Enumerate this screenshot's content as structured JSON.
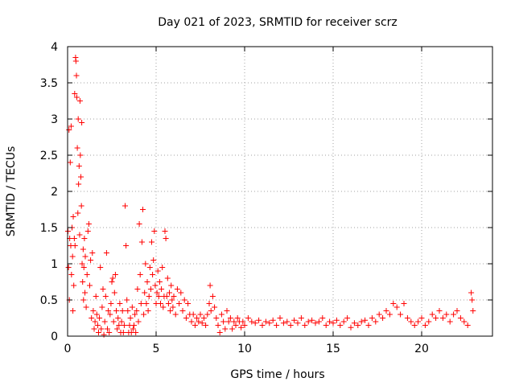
{
  "chart_data": {
    "type": "scatter",
    "title": "Day 021 of 2023, SRMTID for receiver scrz",
    "xlabel": "GPS time / hours",
    "ylabel": "SRMTID / TECUs",
    "xlim": [
      0,
      24
    ],
    "ylim": [
      0,
      4
    ],
    "xticks": [
      0,
      5,
      10,
      15,
      20
    ],
    "xtick_labels": [
      "0",
      "5",
      "10",
      "15",
      "20"
    ],
    "yticks": [
      0,
      0.5,
      1,
      1.5,
      2,
      2.5,
      3,
      3.5,
      4
    ],
    "ytick_labels": [
      "0",
      "0.5",
      "1",
      "1.5",
      "2",
      "2.5",
      "3",
      "3.5",
      "4"
    ],
    "grid": true,
    "marker": "+",
    "series": [
      {
        "name": "SRMTID",
        "color": "#ff0000",
        "points": [
          [
            0.02,
            1.45
          ],
          [
            0.05,
            0.95
          ],
          [
            0.08,
            2.85
          ],
          [
            0.1,
            0.5
          ],
          [
            0.12,
            1.35
          ],
          [
            0.15,
            2.4
          ],
          [
            0.18,
            1.25
          ],
          [
            0.2,
            2.9
          ],
          [
            0.22,
            0.85
          ],
          [
            0.25,
            1.5
          ],
          [
            0.28,
            1.1
          ],
          [
            0.3,
            0.35
          ],
          [
            0.32,
            1.65
          ],
          [
            0.35,
            0.7
          ],
          [
            0.38,
            1.35
          ],
          [
            0.4,
            3.35
          ],
          [
            0.42,
            1.25
          ],
          [
            0.45,
            3.85
          ],
          [
            0.47,
            3.8
          ],
          [
            0.5,
            3.6
          ],
          [
            0.52,
            3.3
          ],
          [
            0.55,
            2.6
          ],
          [
            0.58,
            1.7
          ],
          [
            0.6,
            3.0
          ],
          [
            0.62,
            2.1
          ],
          [
            0.65,
            2.35
          ],
          [
            0.68,
            1.4
          ],
          [
            0.7,
            3.25
          ],
          [
            0.72,
            2.5
          ],
          [
            0.75,
            2.2
          ],
          [
            0.78,
            1.8
          ],
          [
            0.8,
            2.95
          ],
          [
            0.82,
            1.0
          ],
          [
            0.85,
            0.75
          ],
          [
            0.88,
            1.2
          ],
          [
            0.9,
            0.5
          ],
          [
            0.92,
            0.95
          ],
          [
            0.95,
            1.35
          ],
          [
            0.98,
            0.6
          ],
          [
            1.0,
            1.1
          ],
          [
            1.05,
            0.4
          ],
          [
            1.1,
            0.85
          ],
          [
            1.15,
            1.45
          ],
          [
            1.2,
            1.55
          ],
          [
            1.25,
            0.7
          ],
          [
            1.3,
            1.05
          ],
          [
            1.35,
            0.25
          ],
          [
            1.4,
            1.15
          ],
          [
            1.45,
            0.35
          ],
          [
            1.5,
            0.1
          ],
          [
            1.55,
            0.2
          ],
          [
            1.6,
            0.55
          ],
          [
            1.65,
            0.3
          ],
          [
            1.7,
            0.15
          ],
          [
            1.75,
            0.05
          ],
          [
            1.8,
            0.25
          ],
          [
            1.85,
            0.95
          ],
          [
            1.9,
            0.1
          ],
          [
            1.95,
            0.4
          ],
          [
            2.0,
            0.65
          ],
          [
            2.05,
            0.02
          ],
          [
            2.1,
            0.2
          ],
          [
            2.15,
            0.55
          ],
          [
            2.2,
            1.15
          ],
          [
            2.25,
            0.1
          ],
          [
            2.3,
            0.35
          ],
          [
            2.35,
            0.05
          ],
          [
            2.4,
            0.3
          ],
          [
            2.45,
            0.45
          ],
          [
            2.5,
            0.75
          ],
          [
            2.55,
            0.8
          ],
          [
            2.6,
            0.2
          ],
          [
            2.65,
            0.6
          ],
          [
            2.7,
            0.85
          ],
          [
            2.75,
            0.35
          ],
          [
            2.8,
            0.1
          ],
          [
            2.85,
            0.25
          ],
          [
            2.9,
            0.15
          ],
          [
            2.95,
            0.45
          ],
          [
            3.0,
            0.05
          ],
          [
            3.05,
            0.2
          ],
          [
            3.1,
            0.35
          ],
          [
            3.15,
            0.05
          ],
          [
            3.2,
            0.15
          ],
          [
            3.25,
            1.8
          ],
          [
            3.3,
            1.25
          ],
          [
            3.35,
            0.5
          ],
          [
            3.4,
            0.35
          ],
          [
            3.45,
            0.05
          ],
          [
            3.5,
            0.15
          ],
          [
            3.55,
            0.25
          ],
          [
            3.6,
            0.05
          ],
          [
            3.65,
            0.4
          ],
          [
            3.7,
            0.1
          ],
          [
            3.75,
            0.15
          ],
          [
            3.8,
            0.3
          ],
          [
            3.85,
            0.05
          ],
          [
            3.9,
            0.35
          ],
          [
            3.95,
            0.65
          ],
          [
            4.0,
            0.2
          ],
          [
            4.05,
            1.55
          ],
          [
            4.1,
            0.85
          ],
          [
            4.15,
            0.45
          ],
          [
            4.2,
            1.3
          ],
          [
            4.25,
            1.75
          ],
          [
            4.3,
            0.3
          ],
          [
            4.35,
            0.6
          ],
          [
            4.4,
            1.0
          ],
          [
            4.45,
            0.45
          ],
          [
            4.5,
            0.75
          ],
          [
            4.55,
            0.35
          ],
          [
            4.6,
            0.55
          ],
          [
            4.65,
            0.95
          ],
          [
            4.7,
            0.65
          ],
          [
            4.75,
            1.3
          ],
          [
            4.8,
            0.85
          ],
          [
            4.85,
            1.05
          ],
          [
            4.9,
            1.45
          ],
          [
            4.95,
            0.7
          ],
          [
            5.0,
            0.45
          ],
          [
            5.05,
            0.6
          ],
          [
            5.1,
            0.9
          ],
          [
            5.15,
            0.55
          ],
          [
            5.2,
            0.75
          ],
          [
            5.25,
            0.45
          ],
          [
            5.3,
            0.65
          ],
          [
            5.35,
            0.95
          ],
          [
            5.4,
            0.4
          ],
          [
            5.45,
            0.55
          ],
          [
            5.5,
            1.45
          ],
          [
            5.55,
            1.35
          ],
          [
            5.6,
            0.55
          ],
          [
            5.65,
            0.8
          ],
          [
            5.7,
            0.45
          ],
          [
            5.75,
            0.6
          ],
          [
            5.8,
            0.35
          ],
          [
            5.85,
            0.7
          ],
          [
            5.9,
            0.5
          ],
          [
            5.95,
            0.4
          ],
          [
            6.0,
            0.55
          ],
          [
            6.1,
            0.3
          ],
          [
            6.2,
            0.65
          ],
          [
            6.3,
            0.45
          ],
          [
            6.4,
            0.6
          ],
          [
            6.5,
            0.35
          ],
          [
            6.6,
            0.5
          ],
          [
            6.7,
            0.25
          ],
          [
            6.8,
            0.45
          ],
          [
            6.9,
            0.3
          ],
          [
            7.0,
            0.2
          ],
          [
            7.1,
            0.3
          ],
          [
            7.2,
            0.15
          ],
          [
            7.3,
            0.25
          ],
          [
            7.4,
            0.2
          ],
          [
            7.5,
            0.3
          ],
          [
            7.6,
            0.18
          ],
          [
            7.7,
            0.25
          ],
          [
            7.8,
            0.15
          ],
          [
            7.9,
            0.3
          ],
          [
            8.0,
            0.45
          ],
          [
            8.05,
            0.7
          ],
          [
            8.1,
            0.35
          ],
          [
            8.2,
            0.55
          ],
          [
            8.3,
            0.4
          ],
          [
            8.4,
            0.25
          ],
          [
            8.5,
            0.15
          ],
          [
            8.6,
            0.05
          ],
          [
            8.7,
            0.3
          ],
          [
            8.8,
            0.2
          ],
          [
            8.9,
            0.1
          ],
          [
            9.0,
            0.35
          ],
          [
            9.1,
            0.2
          ],
          [
            9.2,
            0.25
          ],
          [
            9.3,
            0.1
          ],
          [
            9.4,
            0.2
          ],
          [
            9.5,
            0.15
          ],
          [
            9.6,
            0.25
          ],
          [
            9.7,
            0.2
          ],
          [
            9.8,
            0.12
          ],
          [
            9.9,
            0.2
          ],
          [
            10.0,
            0.15
          ],
          [
            10.2,
            0.25
          ],
          [
            10.4,
            0.2
          ],
          [
            10.6,
            0.18
          ],
          [
            10.8,
            0.22
          ],
          [
            11.0,
            0.15
          ],
          [
            11.2,
            0.2
          ],
          [
            11.4,
            0.18
          ],
          [
            11.6,
            0.22
          ],
          [
            11.8,
            0.15
          ],
          [
            12.0,
            0.25
          ],
          [
            12.2,
            0.18
          ],
          [
            12.4,
            0.2
          ],
          [
            12.6,
            0.15
          ],
          [
            12.8,
            0.22
          ],
          [
            13.0,
            0.18
          ],
          [
            13.2,
            0.25
          ],
          [
            13.4,
            0.15
          ],
          [
            13.6,
            0.2
          ],
          [
            13.8,
            0.22
          ],
          [
            14.0,
            0.18
          ],
          [
            14.2,
            0.2
          ],
          [
            14.4,
            0.25
          ],
          [
            14.6,
            0.15
          ],
          [
            14.8,
            0.2
          ],
          [
            15.0,
            0.18
          ],
          [
            15.2,
            0.22
          ],
          [
            15.4,
            0.15
          ],
          [
            15.6,
            0.2
          ],
          [
            15.8,
            0.25
          ],
          [
            16.0,
            0.12
          ],
          [
            16.2,
            0.18
          ],
          [
            16.4,
            0.15
          ],
          [
            16.6,
            0.2
          ],
          [
            16.8,
            0.22
          ],
          [
            17.0,
            0.15
          ],
          [
            17.2,
            0.25
          ],
          [
            17.4,
            0.2
          ],
          [
            17.6,
            0.3
          ],
          [
            17.8,
            0.25
          ],
          [
            18.0,
            0.35
          ],
          [
            18.2,
            0.3
          ],
          [
            18.4,
            0.45
          ],
          [
            18.6,
            0.4
          ],
          [
            18.8,
            0.3
          ],
          [
            19.0,
            0.45
          ],
          [
            19.2,
            0.25
          ],
          [
            19.4,
            0.2
          ],
          [
            19.6,
            0.15
          ],
          [
            19.8,
            0.2
          ],
          [
            20.0,
            0.25
          ],
          [
            20.2,
            0.15
          ],
          [
            20.4,
            0.2
          ],
          [
            20.6,
            0.3
          ],
          [
            20.8,
            0.25
          ],
          [
            21.0,
            0.35
          ],
          [
            21.2,
            0.25
          ],
          [
            21.4,
            0.3
          ],
          [
            21.6,
            0.2
          ],
          [
            21.8,
            0.3
          ],
          [
            22.0,
            0.35
          ],
          [
            22.2,
            0.25
          ],
          [
            22.4,
            0.2
          ],
          [
            22.6,
            0.15
          ],
          [
            22.8,
            0.6
          ],
          [
            22.85,
            0.5
          ],
          [
            22.9,
            0.35
          ]
        ]
      }
    ]
  }
}
